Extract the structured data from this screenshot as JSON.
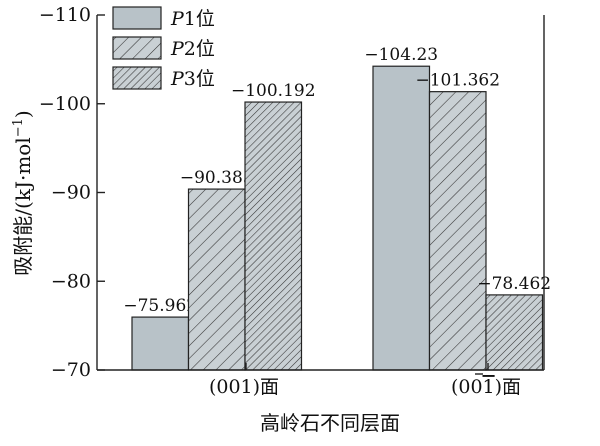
{
  "chart_data": {
    "type": "bar",
    "ylabel_prefix": "吸附能/(kJ·mol",
    "ylabel_sup": "−1",
    "ylabel_suffix": ")",
    "xlabel": "高岭石不同层面",
    "categories": [
      {
        "prefix": "(00",
        "mid": "1",
        "suffix": ")面",
        "overline": false
      },
      {
        "prefix": "(00",
        "mid": "1",
        "suffix": ")面",
        "overline": true
      }
    ],
    "series": [
      {
        "italic": "P",
        "rest": "1位",
        "values": [
          -75.962,
          -104.23
        ],
        "labels": [
          "−75.962",
          "−104.23"
        ],
        "fill": "#b8c2c8",
        "pattern": "solid"
      },
      {
        "italic": "P",
        "rest": "2位",
        "values": [
          -90.385,
          -101.362
        ],
        "labels": [
          "−90.385",
          "−101.362"
        ],
        "fill": "#c9d0d4",
        "pattern": "hatch-wide"
      },
      {
        "italic": "P",
        "rest": "3位",
        "values": [
          -100.192,
          -78.462
        ],
        "labels": [
          "−100.192",
          "−78.462"
        ],
        "fill": "#c9d0d4",
        "pattern": "hatch-dense"
      }
    ],
    "y_ticks": [
      -70,
      -80,
      -90,
      -100,
      -110
    ],
    "y_tick_labels": [
      "−70",
      "−80",
      "−90",
      "−100",
      "−110"
    ],
    "ylim": [
      -70,
      -110
    ],
    "y_inverted": true,
    "legend_position": "top-left",
    "grid": false
  }
}
